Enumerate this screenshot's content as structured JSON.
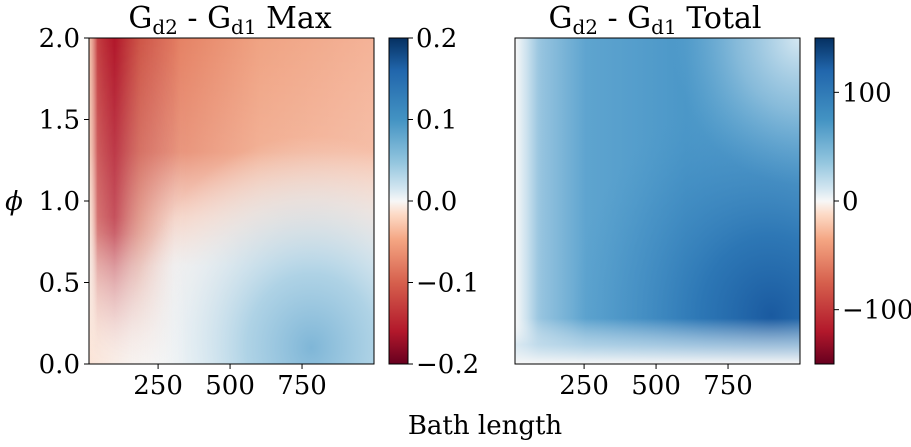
{
  "chart_data": [
    {
      "type": "heatmap",
      "title": {
        "main": "G",
        "sub1": "d2",
        "mid": " - G",
        "sub2": "d1",
        "tail": " Max"
      },
      "ylabel": "ϕ",
      "xticks": [
        250,
        500,
        750
      ],
      "xtick_labels": [
        "250",
        "500",
        "750"
      ],
      "xlim": [
        10,
        1000
      ],
      "yticks": [
        0.0,
        0.5,
        1.0,
        1.5,
        2.0
      ],
      "ytick_labels": [
        "0.0",
        "0.5",
        "1.0",
        "1.5",
        "2.0"
      ],
      "ylim": [
        0,
        2
      ],
      "colorbar": {
        "vmin": -0.2,
        "vmax": 0.2,
        "ticks": [
          -0.2,
          -0.1,
          0.0,
          0.1,
          0.2
        ],
        "tick_labels": [
          "−0.2",
          "−0.1",
          "0.0",
          "0.1",
          "0.2"
        ],
        "colormap": "RdBu"
      }
    },
    {
      "type": "heatmap",
      "title": {
        "main": "G",
        "sub1": "d2",
        "mid": " - G",
        "sub2": "d1",
        "tail": " Total"
      },
      "xticks": [
        250,
        500,
        750
      ],
      "xtick_labels": [
        "250",
        "500",
        "750"
      ],
      "xlim": [
        10,
        1000
      ],
      "ylim": [
        0,
        2
      ],
      "colorbar": {
        "vmin": -150,
        "vmax": 150,
        "ticks": [
          -100,
          0,
          100
        ],
        "tick_labels": [
          "−100",
          "0",
          "100"
        ],
        "colormap": "RdBu"
      }
    }
  ],
  "shared_xlabel": "Bath length"
}
